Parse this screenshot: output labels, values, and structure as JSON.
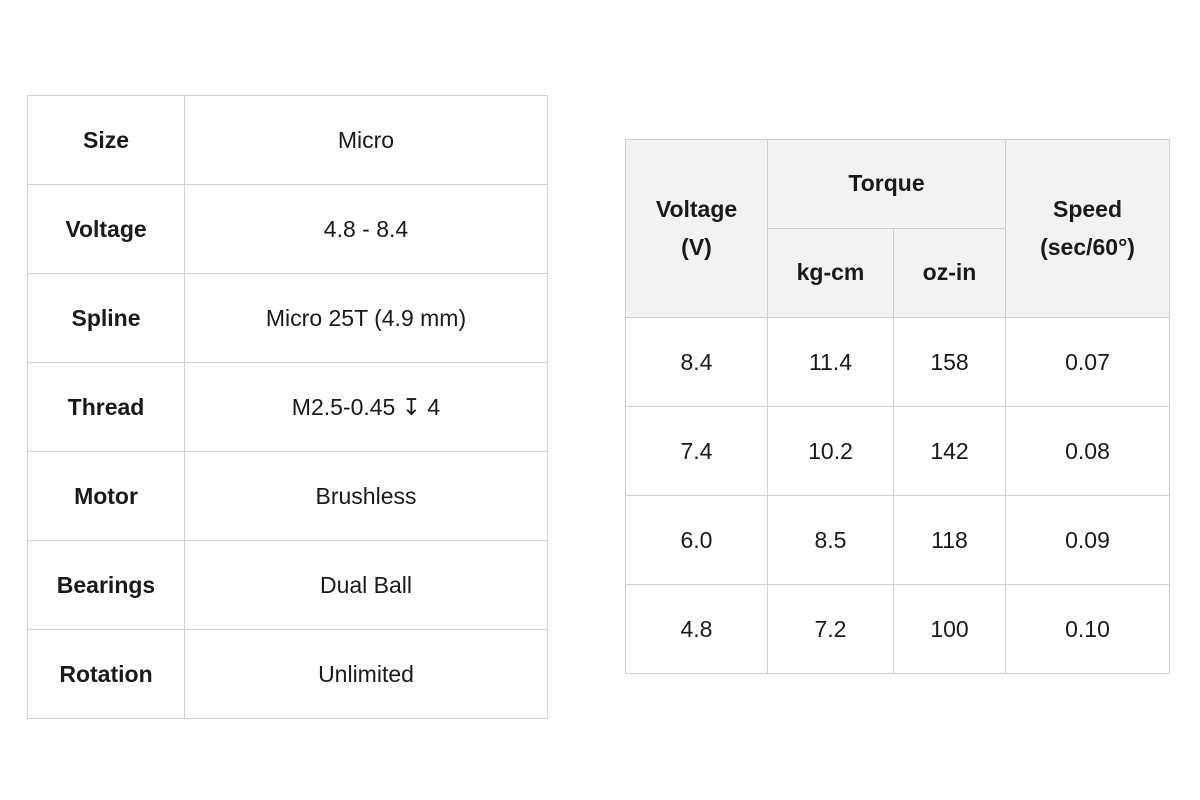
{
  "spec_table": {
    "rows": [
      {
        "key": "Size",
        "value": "Micro"
      },
      {
        "key": "Voltage",
        "value": "4.8 - 8.4"
      },
      {
        "key": "Spline",
        "value": "Micro 25T (4.9 mm)"
      },
      {
        "key": "Thread",
        "value": "M2.5-0.45 ↧ 4"
      },
      {
        "key": "Motor",
        "value": "Brushless"
      },
      {
        "key": "Bearings",
        "value": "Dual Ball"
      },
      {
        "key": "Rotation",
        "value": "Unlimited"
      }
    ]
  },
  "perf_table": {
    "headers": {
      "voltage_line1": "Voltage",
      "voltage_line2": "(V)",
      "torque": "Torque",
      "kg_cm": "kg-cm",
      "oz_in": "oz-in",
      "speed_line1": "Speed",
      "speed_line2": "(sec/60°)"
    },
    "rows": [
      {
        "voltage": "8.4",
        "kg_cm": "11.4",
        "oz_in": "158",
        "speed": "0.07"
      },
      {
        "voltage": "7.4",
        "kg_cm": "10.2",
        "oz_in": "142",
        "speed": "0.08"
      },
      {
        "voltage": "6.0",
        "kg_cm": "8.5",
        "oz_in": "118",
        "speed": "0.09"
      },
      {
        "voltage": "4.8",
        "kg_cm": "7.2",
        "oz_in": "100",
        "speed": "0.10"
      }
    ]
  }
}
